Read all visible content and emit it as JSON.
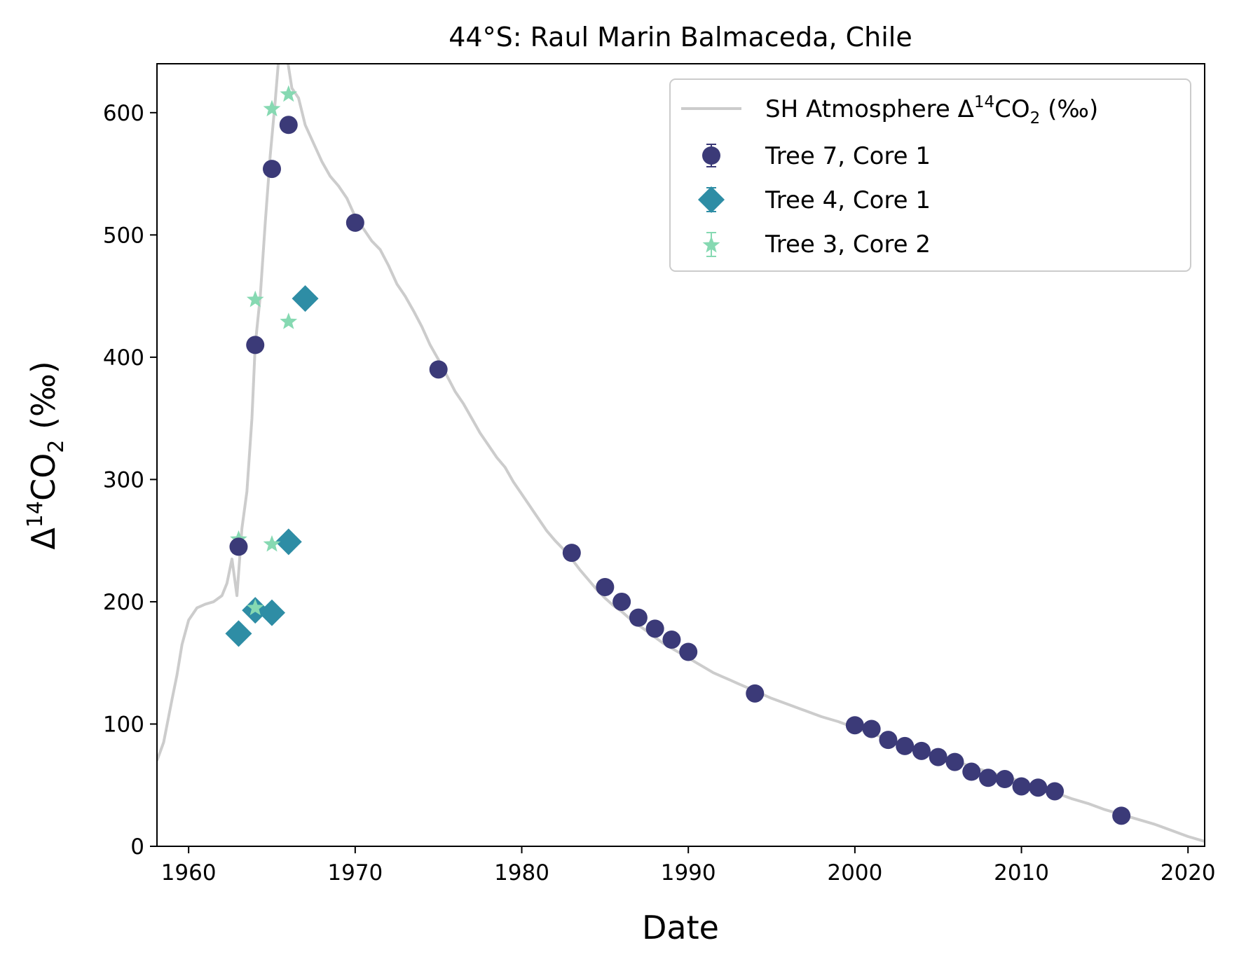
{
  "chart_data": {
    "type": "scatter",
    "title": "44°S: Raul Marin Balmaceda, Chile",
    "xlabel": "Date",
    "ylabel": {
      "base": "Δ",
      "sup": "14",
      "main": "CO",
      "sub": "2",
      "suffix": " (‰)"
    },
    "xlim": [
      1958.1,
      2021
    ],
    "ylim": [
      0,
      640
    ],
    "xticks": [
      1960,
      1970,
      1980,
      1990,
      2000,
      2010,
      2020
    ],
    "yticks": [
      0,
      100,
      200,
      300,
      400,
      500,
      600
    ],
    "grid": false,
    "legend_position": "top-right",
    "atmosphere": {
      "label": {
        "prefix": "SH Atmosphere Δ",
        "sup": "14",
        "main": "CO",
        "sub": "2",
        "suffix": " (‰)"
      },
      "color": "#cccccc",
      "x": [
        1958.1,
        1958.5,
        1959.0,
        1959.3,
        1959.6,
        1960.0,
        1960.5,
        1961.0,
        1961.5,
        1962.0,
        1962.3,
        1962.6,
        1962.9,
        1963.2,
        1963.5,
        1963.8,
        1964.0,
        1964.3,
        1964.6,
        1964.9,
        1965.2,
        1965.5,
        1965.8,
        1966.2,
        1966.6,
        1967.0,
        1967.5,
        1968.0,
        1968.5,
        1969.0,
        1969.5,
        1970.0,
        1970.5,
        1971.0,
        1971.5,
        1972.0,
        1972.5,
        1973.0,
        1973.5,
        1974.0,
        1974.5,
        1975.0,
        1975.5,
        1976.0,
        1976.5,
        1977.0,
        1977.5,
        1978.0,
        1978.5,
        1979.0,
        1979.5,
        1980.0,
        1980.5,
        1981.0,
        1981.5,
        1982.0,
        1982.5,
        1983.0,
        1983.5,
        1984.0,
        1984.5,
        1985.0,
        1985.5,
        1986.0,
        1986.5,
        1987.0,
        1987.5,
        1988.0,
        1988.5,
        1989.0,
        1989.5,
        1990.0,
        1990.5,
        1991.0,
        1991.5,
        1992.0,
        1992.5,
        1993.0,
        1993.5,
        1994.0,
        1995.0,
        1996.0,
        1997.0,
        1998.0,
        1999.0,
        2000.0,
        2001.0,
        2002.0,
        2003.0,
        2004.0,
        2005.0,
        2006.0,
        2007.0,
        2008.0,
        2009.0,
        2010.0,
        2011.0,
        2012.0,
        2013.0,
        2014.0,
        2015.0,
        2016.0,
        2017.0,
        2018.0,
        2019.0,
        2020.0,
        2021.0
      ],
      "y": [
        70,
        85,
        120,
        140,
        165,
        185,
        195,
        198,
        200,
        205,
        215,
        235,
        205,
        260,
        290,
        350,
        410,
        450,
        510,
        565,
        610,
        660,
        655,
        620,
        612,
        590,
        575,
        560,
        548,
        540,
        530,
        515,
        505,
        495,
        488,
        475,
        460,
        450,
        438,
        425,
        410,
        398,
        385,
        372,
        362,
        350,
        338,
        328,
        318,
        310,
        298,
        288,
        278,
        268,
        258,
        250,
        243,
        235,
        226,
        218,
        210,
        203,
        197,
        192,
        186,
        181,
        176,
        171,
        166,
        162,
        158,
        154,
        150,
        146,
        142,
        139,
        136,
        133,
        130,
        127,
        121,
        116,
        111,
        106,
        102,
        97,
        92,
        88,
        83,
        78,
        74,
        70,
        65,
        61,
        57,
        53,
        48,
        44,
        39,
        35,
        30,
        26,
        22,
        18,
        13,
        8,
        4
      ]
    },
    "series": [
      {
        "name": "Tree 7, Core 1",
        "marker": "circle",
        "color": "#3b3a78",
        "x": [
          1963,
          1964,
          1965,
          1966,
          1970,
          1975,
          1983,
          1985,
          1986,
          1987,
          1988,
          1989,
          1990,
          1994,
          2000,
          2001,
          2002,
          2003,
          2004,
          2005,
          2006,
          2007,
          2008,
          2009,
          2010,
          2011,
          2012,
          2016
        ],
        "y": [
          245,
          410,
          554,
          590,
          510,
          390,
          240,
          212,
          200,
          187,
          178,
          169,
          159,
          125,
          99,
          96,
          87,
          82,
          78,
          73,
          69,
          61,
          56,
          55,
          49,
          48,
          45,
          25
        ]
      },
      {
        "name": "Tree 4, Core 1",
        "marker": "diamond",
        "color": "#2e8da5",
        "x": [
          1963,
          1964,
          1965,
          1966,
          1967
        ],
        "y": [
          174,
          193,
          191,
          249,
          448
        ]
      },
      {
        "name": "Tree 3, Core 2",
        "marker": "star",
        "color": "#86d9b2",
        "x": [
          1963,
          1964,
          1964,
          1965,
          1965,
          1966,
          1966
        ],
        "y": [
          251,
          195,
          447,
          247,
          603,
          429,
          615
        ]
      }
    ]
  }
}
